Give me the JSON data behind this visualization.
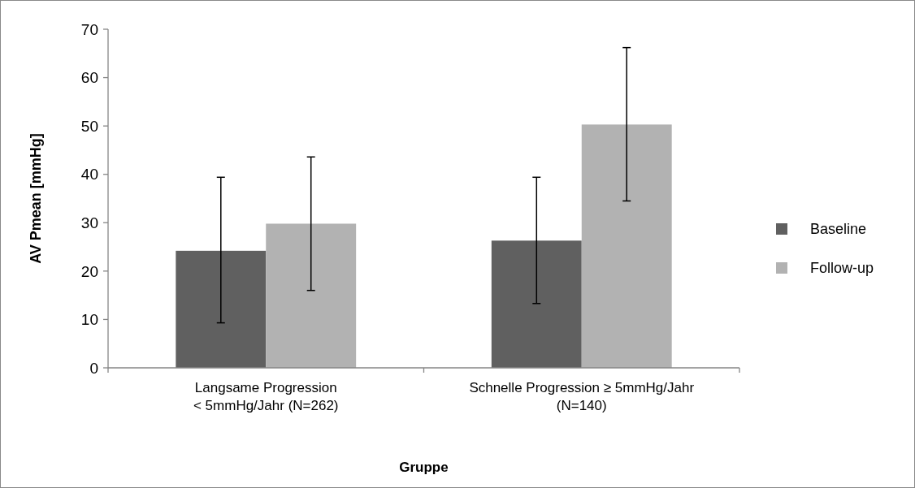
{
  "chart_data": {
    "type": "bar",
    "xlabel": "Gruppe",
    "ylabel": "AV Pmean [mmHg]",
    "categories": [
      "Langsame Progression\n< 5mmHg/Jahr (N=262)",
      "Schnelle Progression ≥ 5mmHg/Jahr\n(N=140)"
    ],
    "series": [
      {
        "name": "Baseline",
        "color": "#606060",
        "values": [
          24.2,
          26.3
        ],
        "errors": [
          [
            9.3,
            39.4
          ],
          [
            13.3,
            39.4
          ]
        ]
      },
      {
        "name": "Follow-up",
        "color": "#b2b2b2",
        "values": [
          29.8,
          50.3
        ],
        "errors": [
          [
            16.0,
            43.6
          ],
          [
            34.5,
            66.2
          ]
        ]
      }
    ],
    "ylim": [
      0,
      70
    ],
    "yticks": [
      0,
      10,
      20,
      30,
      40,
      50,
      60,
      70
    ],
    "grid": false,
    "legend": "right"
  }
}
